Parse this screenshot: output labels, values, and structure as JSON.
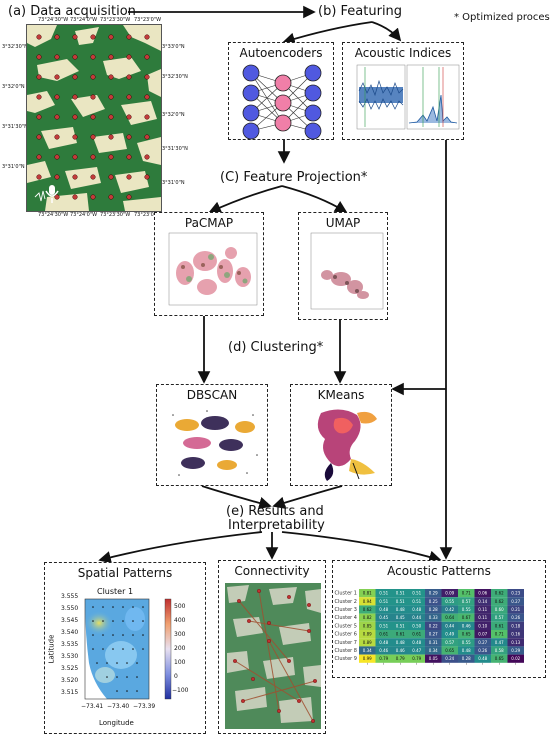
{
  "labels": {
    "a": "(a) Data acquisition",
    "b": "(b) Featuring",
    "optimized": "* Optimized process",
    "c": "(C) Feature Projection*",
    "d": "(d) Clustering*",
    "e_line1": "(e) Results and",
    "e_line2": "Interpretability"
  },
  "boxes": {
    "autoencoders": "Autoencoders",
    "acoustic_indices": "Acoustic Indices",
    "pacmap": "PaCMAP",
    "umap": "UMAP",
    "dbscan": "DBSCAN",
    "kmeans": "KMeans",
    "spatial_patterns": "Spatial Patterns",
    "connectivity": "Connectivity",
    "acoustic_patterns": "Acoustic Patterns"
  },
  "map": {
    "top_ticks": [
      "73°24'30\"W",
      "73°24'0\"W",
      "73°23'30\"W",
      "73°23'0\"W"
    ],
    "bottom_ticks": [
      "73°24'30\"W",
      "73°24'0\"W",
      "73°23'30\"W",
      "73°23'0\"W"
    ],
    "left_ticks": [
      "3°32'30\"N",
      "3°32'0\"N",
      "3°31'30\"N",
      "3°31'0\"N"
    ],
    "right_ticks": [
      "3°33'0\"N",
      "3°32'30\"N",
      "3°32'0\"N",
      "3°31'30\"N",
      "3°31'0\"N"
    ]
  },
  "spatial": {
    "title": "Cluster 1",
    "xlabel": "Longitude",
    "ylabel": "Latitude",
    "yticks": [
      "3.555",
      "3.550",
      "3.545",
      "3.540",
      "3.535",
      "3.530",
      "3.525",
      "3.520",
      "3.515"
    ],
    "xticks": [
      "−73.41",
      "−73.40",
      "−73.39"
    ],
    "cbar_ticks": [
      "500",
      "400",
      "300",
      "200",
      "100",
      "0",
      "−100"
    ]
  },
  "heatmap": {
    "rows": [
      "Cluster 1",
      "Cluster 2",
      "Cluster 3",
      "Cluster 4",
      "Cluster 5",
      "Cluster 6",
      "Cluster 7",
      "Cluster 8",
      "Cluster 9"
    ],
    "values": [
      [
        0.81,
        0.51,
        0.51,
        0.51,
        0.29,
        0.09,
        0.71,
        0.06,
        0.62,
        0.23
      ],
      [
        0.94,
        0.51,
        0.51,
        0.51,
        0.25,
        0.55,
        0.57,
        0.14,
        0.62,
        0.27
      ],
      [
        0.62,
        0.48,
        0.48,
        0.48,
        0.28,
        0.42,
        0.55,
        0.11,
        0.6,
        0.21
      ],
      [
        0.82,
        0.45,
        0.45,
        0.44,
        0.33,
        0.64,
        0.67,
        0.11,
        0.57,
        0.26
      ],
      [
        0.85,
        0.51,
        0.51,
        0.5,
        0.22,
        0.44,
        0.46,
        0.1,
        0.61,
        0.18
      ],
      [
        0.89,
        0.61,
        0.61,
        0.61,
        0.27,
        0.49,
        0.65,
        0.07,
        0.71,
        0.16
      ],
      [
        0.89,
        0.48,
        0.48,
        0.48,
        0.31,
        0.57,
        0.55,
        0.27,
        0.47,
        0.13
      ],
      [
        0.34,
        0.46,
        0.46,
        0.47,
        0.34,
        0.65,
        0.48,
        0.26,
        0.58,
        0.29
      ],
      [
        0.99,
        0.79,
        0.79,
        0.79,
        0.05,
        0.24,
        0.28,
        0.48,
        0.65,
        0.02
      ]
    ]
  }
}
